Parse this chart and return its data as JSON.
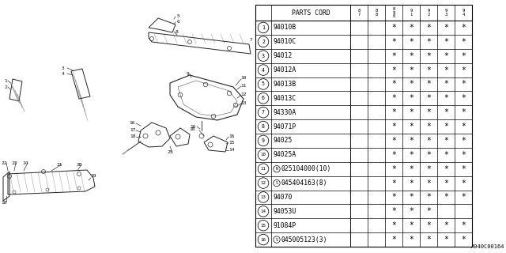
{
  "figure_code": "A940C00164",
  "rows": [
    {
      "num": "1",
      "prefix": "",
      "part": "94010B",
      "stars": [
        false,
        false,
        false,
        true,
        true,
        true,
        true,
        true
      ]
    },
    {
      "num": "2",
      "prefix": "",
      "part": "94010C",
      "stars": [
        false,
        false,
        false,
        true,
        true,
        true,
        true,
        true
      ]
    },
    {
      "num": "3",
      "prefix": "",
      "part": "94012",
      "stars": [
        false,
        false,
        false,
        true,
        true,
        true,
        true,
        true
      ]
    },
    {
      "num": "4",
      "prefix": "",
      "part": "94012A",
      "stars": [
        false,
        false,
        false,
        true,
        true,
        true,
        true,
        true
      ]
    },
    {
      "num": "5",
      "prefix": "",
      "part": "94013B",
      "stars": [
        false,
        false,
        false,
        true,
        true,
        true,
        true,
        true
      ]
    },
    {
      "num": "6",
      "prefix": "",
      "part": "94013C",
      "stars": [
        false,
        false,
        false,
        true,
        true,
        true,
        true,
        true
      ]
    },
    {
      "num": "7",
      "prefix": "",
      "part": "94330A",
      "stars": [
        false,
        false,
        false,
        true,
        true,
        true,
        true,
        true
      ]
    },
    {
      "num": "8",
      "prefix": "",
      "part": "94071P",
      "stars": [
        false,
        false,
        false,
        true,
        true,
        true,
        true,
        true
      ]
    },
    {
      "num": "9",
      "prefix": "",
      "part": "94025",
      "stars": [
        false,
        false,
        false,
        true,
        true,
        true,
        true,
        true
      ]
    },
    {
      "num": "10",
      "prefix": "",
      "part": "94025A",
      "stars": [
        false,
        false,
        false,
        true,
        true,
        true,
        true,
        true
      ]
    },
    {
      "num": "11",
      "prefix": "N",
      "part": "025104000(10)",
      "stars": [
        false,
        false,
        false,
        true,
        true,
        true,
        true,
        true
      ]
    },
    {
      "num": "12",
      "prefix": "S",
      "part": "045404163(8)",
      "stars": [
        false,
        false,
        false,
        true,
        true,
        true,
        true,
        true
      ]
    },
    {
      "num": "13",
      "prefix": "",
      "part": "94070",
      "stars": [
        false,
        false,
        false,
        true,
        true,
        true,
        true,
        true
      ]
    },
    {
      "num": "14",
      "prefix": "",
      "part": "94053U",
      "stars": [
        false,
        false,
        false,
        true,
        true,
        true,
        false,
        false
      ]
    },
    {
      "num": "15",
      "prefix": "",
      "part": "91084P",
      "stars": [
        false,
        false,
        false,
        true,
        true,
        true,
        true,
        true
      ]
    },
    {
      "num": "16",
      "prefix": "S",
      "part": "045005123(3)",
      "stars": [
        false,
        false,
        false,
        true,
        true,
        true,
        true,
        true
      ]
    }
  ],
  "year_headers": [
    "8\n7",
    "8\n8",
    "8\n9\n0",
    "9\n1",
    "9\n2",
    "9\n3",
    "9\n4"
  ],
  "bg_color": "#ffffff"
}
